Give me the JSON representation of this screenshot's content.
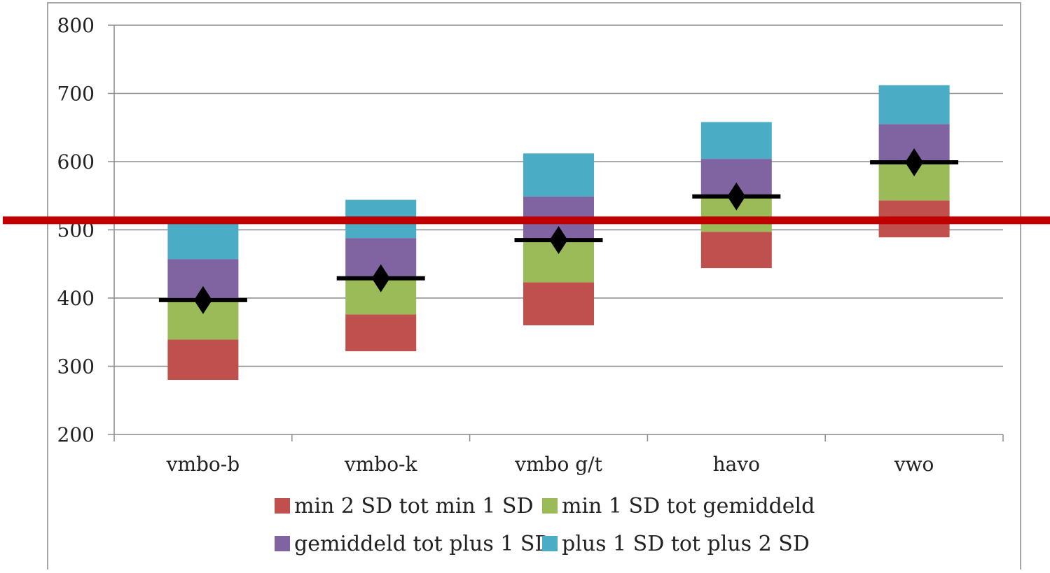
{
  "chart_data": {
    "type": "bar",
    "stacked": true,
    "categories": [
      "vmbo-b",
      "vmbo-k",
      "vmbo g/t",
      "havo",
      "vwo"
    ],
    "ylim": [
      200,
      800
    ],
    "yticks": [
      200,
      300,
      400,
      500,
      600,
      700,
      800
    ],
    "grid": true,
    "legend_position": "bottom",
    "series": [
      {
        "name": "min 2 SD tot min 1 SD",
        "color": "#c0504d",
        "ranges": [
          [
            280,
            339
          ],
          [
            322,
            376
          ],
          [
            360,
            423
          ],
          [
            444,
            497
          ],
          [
            489,
            543
          ]
        ]
      },
      {
        "name": "min 1 SD tot gemiddeld",
        "color": "#9bbb59",
        "ranges": [
          [
            339,
            397
          ],
          [
            376,
            429
          ],
          [
            423,
            485
          ],
          [
            497,
            549
          ],
          [
            543,
            599
          ]
        ]
      },
      {
        "name": "gemiddeld tot plus 1 SD",
        "color": "#8064a2",
        "ranges": [
          [
            397,
            457
          ],
          [
            429,
            488
          ],
          [
            485,
            549
          ],
          [
            549,
            604
          ],
          [
            599,
            655
          ]
        ]
      },
      {
        "name": "plus 1 SD tot plus 2 SD",
        "color": "#4bacc6",
        "ranges": [
          [
            457,
            513
          ],
          [
            488,
            544
          ],
          [
            549,
            612
          ],
          [
            604,
            658
          ],
          [
            655,
            712
          ]
        ]
      }
    ],
    "mean": {
      "values": [
        397,
        429,
        485,
        549,
        599
      ],
      "color": "#000000"
    },
    "reference_line": {
      "value": 514,
      "color": "#c00000"
    }
  }
}
